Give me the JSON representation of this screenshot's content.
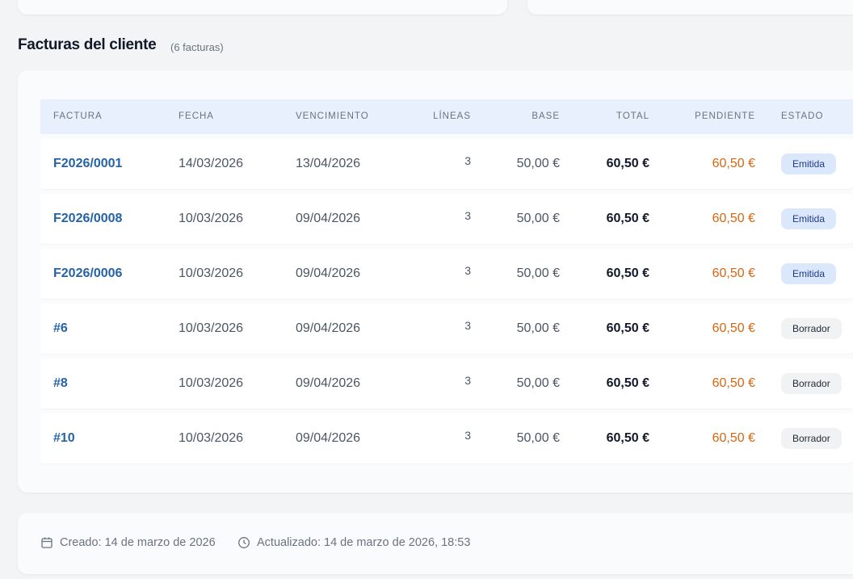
{
  "header": {
    "title": "Facturas del cliente",
    "count": "(6 facturas)"
  },
  "table": {
    "columns": [
      "FACTURA",
      "FECHA",
      "VENCIMIENTO",
      "LÍNEAS",
      "BASE",
      "TOTAL",
      "PENDIENTE",
      "ESTADO"
    ],
    "rows": [
      [
        "F2026/0001",
        "14/03/2026",
        "13/04/2026",
        "3",
        "50,00 €",
        "60,50 €",
        "60,50 €",
        "Emitida"
      ],
      [
        "F2026/0008",
        "10/03/2026",
        "09/04/2026",
        "3",
        "50,00 €",
        "60,50 €",
        "60,50 €",
        "Emitida"
      ],
      [
        "F2026/0006",
        "10/03/2026",
        "09/04/2026",
        "3",
        "50,00 €",
        "60,50 €",
        "60,50 €",
        "Emitida"
      ],
      [
        "#6",
        "10/03/2026",
        "09/04/2026",
        "3",
        "50,00 €",
        "60,50 €",
        "60,50 €",
        "Borrador"
      ],
      [
        "#8",
        "10/03/2026",
        "09/04/2026",
        "3",
        "50,00 €",
        "60,50 €",
        "60,50 €",
        "Borrador"
      ],
      [
        "#10",
        "10/03/2026",
        "09/04/2026",
        "3",
        "50,00 €",
        "60,50 €",
        "60,50 €",
        "Borrador"
      ]
    ]
  },
  "footer": {
    "created": "Creado: 14 de marzo de 2026",
    "updated": "Actualizado: 14 de marzo de 2026, 18:53"
  }
}
